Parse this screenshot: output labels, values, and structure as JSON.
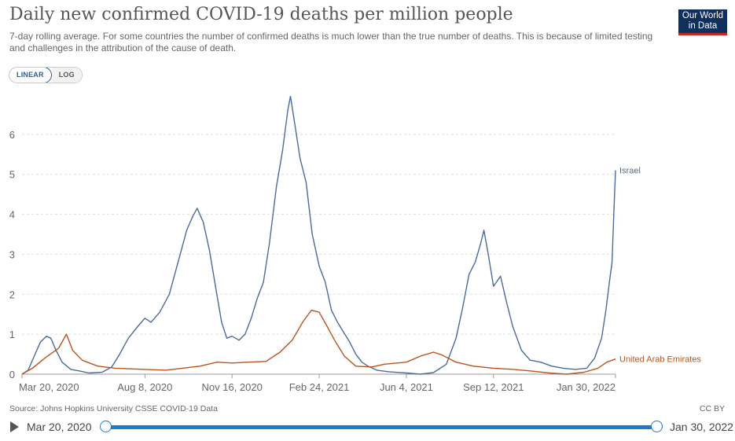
{
  "header": {
    "title": "Daily new confirmed COVID-19 deaths per million people",
    "subtitle": "7-day rolling average. For some countries the number of confirmed deaths is much lower than the true number of deaths. This is because of limited testing and challenges in the attribution of the cause of death.",
    "logo_line1": "Our World",
    "logo_line2": "in Data"
  },
  "scale_toggle": {
    "linear": "LINEAR",
    "log": "LOG",
    "selected": "LINEAR"
  },
  "colors": {
    "israel": "#4c6a9c",
    "uae": "#b9551c",
    "grid": "#dddddd",
    "slider": "#1f78d1"
  },
  "chart_data": {
    "type": "line",
    "title": "Daily new confirmed COVID-19 deaths per million people",
    "x_axis": {
      "type": "date",
      "range": [
        "2020-03-20",
        "2022-01-30"
      ],
      "tick_labels": [
        "Mar 20, 2020",
        "Aug 8, 2020",
        "Nov 16, 2020",
        "Feb 24, 2021",
        "Jun 4, 2021",
        "Sep 12, 2021",
        "Jan 30, 2022"
      ],
      "tick_dates": [
        "2020-03-20",
        "2020-08-08",
        "2020-11-16",
        "2021-02-24",
        "2021-06-04",
        "2021-09-12",
        "2022-01-30"
      ]
    },
    "y_axis": {
      "range": [
        0,
        7
      ],
      "ticks": [
        0,
        1,
        2,
        3,
        4,
        5,
        6
      ],
      "tick_labels": [
        "0",
        "1",
        "2",
        "3",
        "4",
        "5",
        "6"
      ]
    },
    "grid": "horizontal dashed",
    "series": [
      {
        "name": "Israel",
        "points": [
          [
            "2020-03-20",
            0.0
          ],
          [
            "2020-03-27",
            0.1
          ],
          [
            "2020-04-03",
            0.45
          ],
          [
            "2020-04-10",
            0.8
          ],
          [
            "2020-04-17",
            0.95
          ],
          [
            "2020-04-22",
            0.9
          ],
          [
            "2020-04-28",
            0.6
          ],
          [
            "2020-05-05",
            0.3
          ],
          [
            "2020-05-15",
            0.12
          ],
          [
            "2020-05-25",
            0.08
          ],
          [
            "2020-06-05",
            0.03
          ],
          [
            "2020-06-20",
            0.05
          ],
          [
            "2020-07-01",
            0.18
          ],
          [
            "2020-07-10",
            0.5
          ],
          [
            "2020-07-20",
            0.9
          ],
          [
            "2020-07-31",
            1.2
          ],
          [
            "2020-08-08",
            1.4
          ],
          [
            "2020-08-15",
            1.3
          ],
          [
            "2020-08-25",
            1.55
          ],
          [
            "2020-09-05",
            2.0
          ],
          [
            "2020-09-15",
            2.8
          ],
          [
            "2020-09-25",
            3.6
          ],
          [
            "2020-10-02",
            3.95
          ],
          [
            "2020-10-07",
            4.15
          ],
          [
            "2020-10-14",
            3.8
          ],
          [
            "2020-10-21",
            3.1
          ],
          [
            "2020-10-28",
            2.2
          ],
          [
            "2020-11-04",
            1.3
          ],
          [
            "2020-11-10",
            0.9
          ],
          [
            "2020-11-16",
            0.95
          ],
          [
            "2020-11-24",
            0.85
          ],
          [
            "2020-12-01",
            1.0
          ],
          [
            "2020-12-08",
            1.4
          ],
          [
            "2020-12-15",
            1.9
          ],
          [
            "2020-12-22",
            2.3
          ],
          [
            "2020-12-29",
            3.3
          ],
          [
            "2021-01-06",
            4.7
          ],
          [
            "2021-01-13",
            5.6
          ],
          [
            "2021-01-19",
            6.6
          ],
          [
            "2021-01-22",
            6.95
          ],
          [
            "2021-01-26",
            6.4
          ],
          [
            "2021-02-02",
            5.4
          ],
          [
            "2021-02-09",
            4.8
          ],
          [
            "2021-02-16",
            3.5
          ],
          [
            "2021-02-24",
            2.7
          ],
          [
            "2021-03-03",
            2.3
          ],
          [
            "2021-03-10",
            1.6
          ],
          [
            "2021-03-17",
            1.3
          ],
          [
            "2021-03-24",
            1.05
          ],
          [
            "2021-03-31",
            0.8
          ],
          [
            "2021-04-07",
            0.5
          ],
          [
            "2021-04-14",
            0.3
          ],
          [
            "2021-04-21",
            0.2
          ],
          [
            "2021-05-01",
            0.1
          ],
          [
            "2021-05-15",
            0.06
          ],
          [
            "2021-06-04",
            0.03
          ],
          [
            "2021-06-20",
            0.0
          ],
          [
            "2021-07-05",
            0.04
          ],
          [
            "2021-07-20",
            0.25
          ],
          [
            "2021-07-31",
            0.9
          ],
          [
            "2021-08-07",
            1.6
          ],
          [
            "2021-08-15",
            2.5
          ],
          [
            "2021-08-22",
            2.8
          ],
          [
            "2021-08-28",
            3.25
          ],
          [
            "2021-09-01",
            3.6
          ],
          [
            "2021-09-06",
            3.0
          ],
          [
            "2021-09-12",
            2.2
          ],
          [
            "2021-09-20",
            2.45
          ],
          [
            "2021-09-27",
            1.8
          ],
          [
            "2021-10-04",
            1.2
          ],
          [
            "2021-10-14",
            0.6
          ],
          [
            "2021-10-24",
            0.35
          ],
          [
            "2021-11-05",
            0.3
          ],
          [
            "2021-11-18",
            0.2
          ],
          [
            "2021-12-01",
            0.15
          ],
          [
            "2021-12-15",
            0.12
          ],
          [
            "2021-12-28",
            0.15
          ],
          [
            "2022-01-06",
            0.4
          ],
          [
            "2022-01-14",
            0.9
          ],
          [
            "2022-01-19",
            1.6
          ],
          [
            "2022-01-23",
            2.3
          ],
          [
            "2022-01-26",
            2.8
          ],
          [
            "2022-01-28",
            4.0
          ],
          [
            "2022-01-30",
            5.1
          ]
        ]
      },
      {
        "name": "United Arab Emirates",
        "points": [
          [
            "2020-03-20",
            0.0
          ],
          [
            "2020-04-01",
            0.15
          ],
          [
            "2020-04-15",
            0.4
          ],
          [
            "2020-05-01",
            0.65
          ],
          [
            "2020-05-10",
            1.0
          ],
          [
            "2020-05-17",
            0.6
          ],
          [
            "2020-05-28",
            0.35
          ],
          [
            "2020-06-15",
            0.2
          ],
          [
            "2020-07-05",
            0.15
          ],
          [
            "2020-08-08",
            0.12
          ],
          [
            "2020-09-01",
            0.1
          ],
          [
            "2020-09-20",
            0.15
          ],
          [
            "2020-10-10",
            0.2
          ],
          [
            "2020-10-30",
            0.3
          ],
          [
            "2020-11-16",
            0.28
          ],
          [
            "2020-12-05",
            0.3
          ],
          [
            "2020-12-25",
            0.32
          ],
          [
            "2021-01-10",
            0.55
          ],
          [
            "2021-01-24",
            0.85
          ],
          [
            "2021-02-05",
            1.3
          ],
          [
            "2021-02-15",
            1.6
          ],
          [
            "2021-02-24",
            1.55
          ],
          [
            "2021-03-05",
            1.2
          ],
          [
            "2021-03-15",
            0.8
          ],
          [
            "2021-03-25",
            0.45
          ],
          [
            "2021-04-07",
            0.2
          ],
          [
            "2021-04-25",
            0.18
          ],
          [
            "2021-05-10",
            0.25
          ],
          [
            "2021-06-04",
            0.3
          ],
          [
            "2021-06-20",
            0.45
          ],
          [
            "2021-07-05",
            0.55
          ],
          [
            "2021-07-15",
            0.48
          ],
          [
            "2021-07-31",
            0.3
          ],
          [
            "2021-08-20",
            0.2
          ],
          [
            "2021-09-12",
            0.15
          ],
          [
            "2021-10-05",
            0.12
          ],
          [
            "2021-10-25",
            0.08
          ],
          [
            "2021-11-15",
            0.03
          ],
          [
            "2021-12-05",
            0.0
          ],
          [
            "2021-12-25",
            0.05
          ],
          [
            "2022-01-10",
            0.15
          ],
          [
            "2022-01-20",
            0.3
          ],
          [
            "2022-01-30",
            0.38
          ]
        ]
      }
    ]
  },
  "footer": {
    "source": "Source: Johns Hopkins University CSSE COVID-19 Data",
    "license": "CC BY"
  },
  "timeline": {
    "start": "Mar 20, 2020",
    "end": "Jan 30, 2022"
  }
}
